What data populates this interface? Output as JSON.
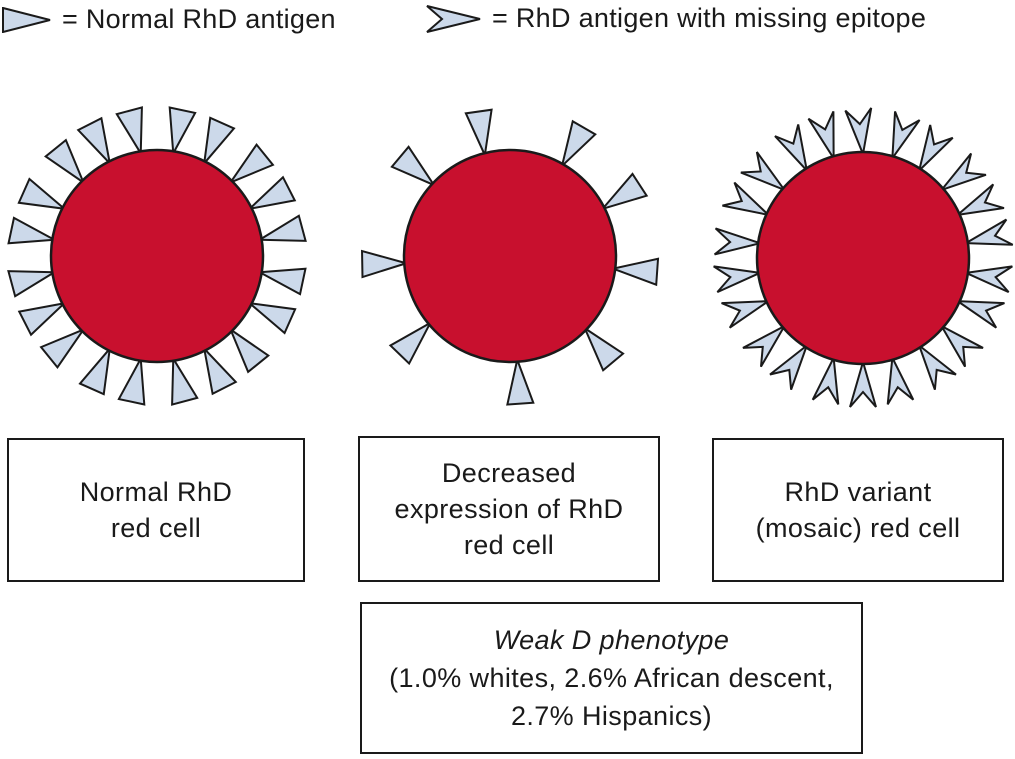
{
  "colors": {
    "cell_red": "#C8102E",
    "antigen_blue": "#CCD9EA",
    "stroke": "#1A1A1A"
  },
  "legend": {
    "items": [
      {
        "icon": "normal-antigen-icon",
        "label": "= Normal RhD antigen"
      },
      {
        "icon": "missing-epitope-antigen-icon",
        "label": "= RhD antigen with missing epitope"
      }
    ]
  },
  "cells": [
    {
      "id": "normal",
      "label_lines": [
        "Normal RhD",
        "red cell"
      ],
      "antigen_type": "normal",
      "antigen_count": 20,
      "antigen_angles": [
        9,
        27,
        45,
        63,
        81,
        99,
        117,
        135,
        153,
        171,
        189,
        207,
        225,
        243,
        261,
        279,
        297,
        315,
        333,
        351
      ]
    },
    {
      "id": "decreased",
      "label_lines": [
        "Decreased",
        "expression of RhD",
        "red cell"
      ],
      "antigen_type": "normal",
      "antigen_count": 9,
      "antigen_angles": [
        27,
        60,
        104,
        137,
        184,
        220,
        274,
        316,
        353
      ]
    },
    {
      "id": "mosaic",
      "label_lines": [
        "RhD variant",
        "(mosaic) red cell"
      ],
      "antigen_type": "missing_epitope",
      "antigen_count": 22,
      "antigen_angles": [
        8.2,
        24.5,
        40.9,
        57.3,
        73.6,
        90.0,
        106.4,
        122.7,
        139.1,
        155.5,
        171.8,
        188.2,
        204.5,
        220.9,
        237.3,
        253.6,
        270.0,
        286.4,
        302.7,
        319.1,
        335.5,
        351.8
      ]
    }
  ],
  "footnote": {
    "lines": [
      "Weak D phenotype",
      "(1.0% whites, 2.6% African descent,",
      "2.7% Hispanics)"
    ]
  }
}
